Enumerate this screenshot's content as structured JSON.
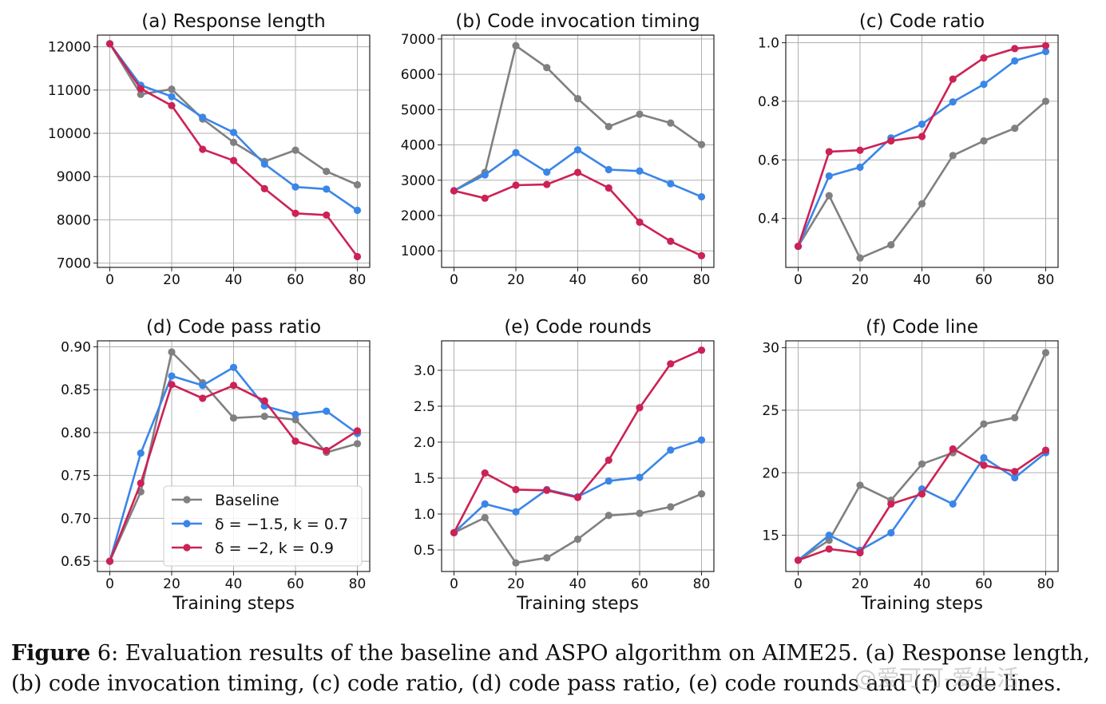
{
  "caption": {
    "label": "Figure",
    "number": " 6",
    "text": ":  Evaluation results of the baseline and ASPO algorithm on AIME25. (a) Response length, (b) code invocation timing, (c) code ratio, (d) code pass ratio, (e) code rounds and (f) code lines."
  },
  "watermark": "@爱可可-爱生活",
  "legend": {
    "entries": [
      "Baseline",
      "δ = −1.5, k = 0.7",
      "δ = −2, k = 0.9"
    ],
    "placement": "lower-center of panel (d)"
  },
  "colors": {
    "baseline": "#808080",
    "s1": "#3a86e8",
    "s2": "#cc2255",
    "grid": "#b0b0b0"
  },
  "chart_data": [
    {
      "type": "line",
      "title": "(a) Response length",
      "xlabel": "",
      "x": [
        0,
        10,
        20,
        30,
        40,
        50,
        60,
        70,
        80
      ],
      "xticks": [
        0,
        20,
        40,
        60,
        80
      ],
      "xlim": [
        -4,
        84
      ],
      "ylim": [
        6900,
        12270
      ],
      "yticks": [
        7000,
        8000,
        9000,
        10000,
        11000,
        12000
      ],
      "ytick_labels": [
        "7000",
        "8000",
        "9000",
        "10000",
        "11000",
        "12000"
      ],
      "grid": true,
      "series": [
        {
          "name": "Baseline",
          "color": "#808080",
          "values": [
            12070,
            10900,
            11020,
            10330,
            9790,
            9350,
            9610,
            9120,
            8810
          ]
        },
        {
          "name": "δ = −1.5, k = 0.7",
          "color": "#3a86e8",
          "values": [
            12070,
            11110,
            10850,
            10370,
            10020,
            9290,
            8760,
            8710,
            8220
          ]
        },
        {
          "name": "δ = −2, k = 0.9",
          "color": "#cc2255",
          "values": [
            12070,
            11030,
            10640,
            9630,
            9370,
            8720,
            8150,
            8110,
            7150
          ]
        }
      ]
    },
    {
      "type": "line",
      "title": "(b) Code invocation timing",
      "xlabel": "",
      "x": [
        0,
        10,
        20,
        30,
        40,
        50,
        60,
        70,
        80
      ],
      "xticks": [
        0,
        20,
        40,
        60,
        80
      ],
      "xlim": [
        -4,
        84
      ],
      "ylim": [
        530,
        7110
      ],
      "yticks": [
        1000,
        2000,
        3000,
        4000,
        5000,
        6000,
        7000
      ],
      "ytick_labels": [
        "1000",
        "2000",
        "3000",
        "4000",
        "5000",
        "6000",
        "7000"
      ],
      "grid": true,
      "series": [
        {
          "name": "Baseline",
          "color": "#808080",
          "values": [
            2700,
            3220,
            6810,
            6190,
            5310,
            4520,
            4870,
            4620,
            4010
          ]
        },
        {
          "name": "δ = −1.5, k = 0.7",
          "color": "#3a86e8",
          "values": [
            2700,
            3150,
            3780,
            3230,
            3860,
            3300,
            3260,
            2900,
            2530
          ]
        },
        {
          "name": "δ = −2, k = 0.9",
          "color": "#cc2255",
          "values": [
            2700,
            2490,
            2860,
            2880,
            3220,
            2780,
            1810,
            1270,
            860
          ]
        }
      ]
    },
    {
      "type": "line",
      "title": "(c) Code ratio",
      "xlabel": "",
      "x": [
        0,
        10,
        20,
        30,
        40,
        50,
        60,
        70,
        80
      ],
      "xticks": [
        0,
        20,
        40,
        60,
        80
      ],
      "xlim": [
        -4,
        84
      ],
      "ylim": [
        0.233,
        1.026
      ],
      "yticks": [
        0.4,
        0.6,
        0.8,
        1.0
      ],
      "ytick_labels": [
        "0.4",
        "0.6",
        "0.8",
        "1.0"
      ],
      "grid": true,
      "series": [
        {
          "name": "Baseline",
          "color": "#808080",
          "values": [
            0.305,
            0.478,
            0.265,
            0.31,
            0.45,
            0.615,
            0.665,
            0.708,
            0.8
          ]
        },
        {
          "name": "δ = −1.5, k = 0.7",
          "color": "#3a86e8",
          "values": [
            0.305,
            0.545,
            0.575,
            0.675,
            0.722,
            0.798,
            0.858,
            0.938,
            0.97
          ]
        },
        {
          "name": "δ = −2, k = 0.9",
          "color": "#cc2255",
          "values": [
            0.305,
            0.628,
            0.633,
            0.665,
            0.68,
            0.876,
            0.948,
            0.98,
            0.99
          ]
        }
      ]
    },
    {
      "type": "line",
      "title": "(d) Code pass ratio",
      "xlabel": "Training steps",
      "x": [
        0,
        10,
        20,
        30,
        40,
        50,
        60,
        70,
        80
      ],
      "xticks": [
        0,
        20,
        40,
        60,
        80
      ],
      "xlim": [
        -4,
        84
      ],
      "ylim": [
        0.638,
        0.907
      ],
      "yticks": [
        0.65,
        0.7,
        0.75,
        0.8,
        0.85,
        0.9
      ],
      "ytick_labels": [
        "0.65",
        "0.70",
        "0.75",
        "0.80",
        "0.85",
        "0.90"
      ],
      "grid": true,
      "series": [
        {
          "name": "Baseline",
          "color": "#808080",
          "values": [
            0.65,
            0.731,
            0.894,
            0.858,
            0.817,
            0.819,
            0.815,
            0.777,
            0.787
          ]
        },
        {
          "name": "δ = −1.5, k = 0.7",
          "color": "#3a86e8",
          "values": [
            0.65,
            0.776,
            0.866,
            0.855,
            0.876,
            0.831,
            0.821,
            0.825,
            0.799
          ]
        },
        {
          "name": "δ = −2, k = 0.9",
          "color": "#cc2255",
          "values": [
            0.65,
            0.741,
            0.856,
            0.84,
            0.855,
            0.837,
            0.79,
            0.779,
            0.802
          ]
        }
      ]
    },
    {
      "type": "line",
      "title": "(e) Code rounds",
      "xlabel": "Training steps",
      "x": [
        0,
        10,
        20,
        30,
        40,
        50,
        60,
        70,
        80
      ],
      "xticks": [
        0,
        20,
        40,
        60,
        80
      ],
      "xlim": [
        -4,
        84
      ],
      "ylim": [
        0.2,
        3.41
      ],
      "yticks": [
        0.5,
        1.0,
        1.5,
        2.0,
        2.5,
        3.0
      ],
      "ytick_labels": [
        "0.5",
        "1.0",
        "1.5",
        "2.0",
        "2.5",
        "3.0"
      ],
      "grid": true,
      "series": [
        {
          "name": "Baseline",
          "color": "#808080",
          "values": [
            0.74,
            0.95,
            0.32,
            0.39,
            0.65,
            0.98,
            1.01,
            1.1,
            1.28
          ]
        },
        {
          "name": "δ = −1.5, k = 0.7",
          "color": "#3a86e8",
          "values": [
            0.74,
            1.14,
            1.03,
            1.34,
            1.24,
            1.46,
            1.51,
            1.89,
            2.03
          ]
        },
        {
          "name": "δ = −2, k = 0.9",
          "color": "#cc2255",
          "values": [
            0.74,
            1.57,
            1.34,
            1.33,
            1.23,
            1.75,
            2.48,
            3.09,
            3.28
          ]
        }
      ]
    },
    {
      "type": "line",
      "title": "(f) Code line",
      "xlabel": "Training steps",
      "x": [
        0,
        10,
        20,
        30,
        40,
        50,
        60,
        70,
        80
      ],
      "xticks": [
        0,
        20,
        40,
        60,
        80
      ],
      "xlim": [
        -4,
        84
      ],
      "ylim": [
        12.1,
        30.55
      ],
      "yticks": [
        15,
        20,
        25,
        30
      ],
      "ytick_labels": [
        "15",
        "20",
        "25",
        "30"
      ],
      "grid": true,
      "series": [
        {
          "name": "Baseline",
          "color": "#808080",
          "values": [
            13.0,
            14.6,
            19.0,
            17.8,
            20.7,
            21.6,
            23.9,
            24.4,
            29.6
          ]
        },
        {
          "name": "δ = −1.5, k = 0.7",
          "color": "#3a86e8",
          "values": [
            13.0,
            15.0,
            13.8,
            15.2,
            18.7,
            17.5,
            21.2,
            19.6,
            21.6
          ]
        },
        {
          "name": "δ = −2, k = 0.9",
          "color": "#cc2255",
          "values": [
            13.0,
            13.9,
            13.6,
            17.5,
            18.3,
            21.9,
            20.6,
            20.1,
            21.8
          ]
        }
      ]
    }
  ]
}
